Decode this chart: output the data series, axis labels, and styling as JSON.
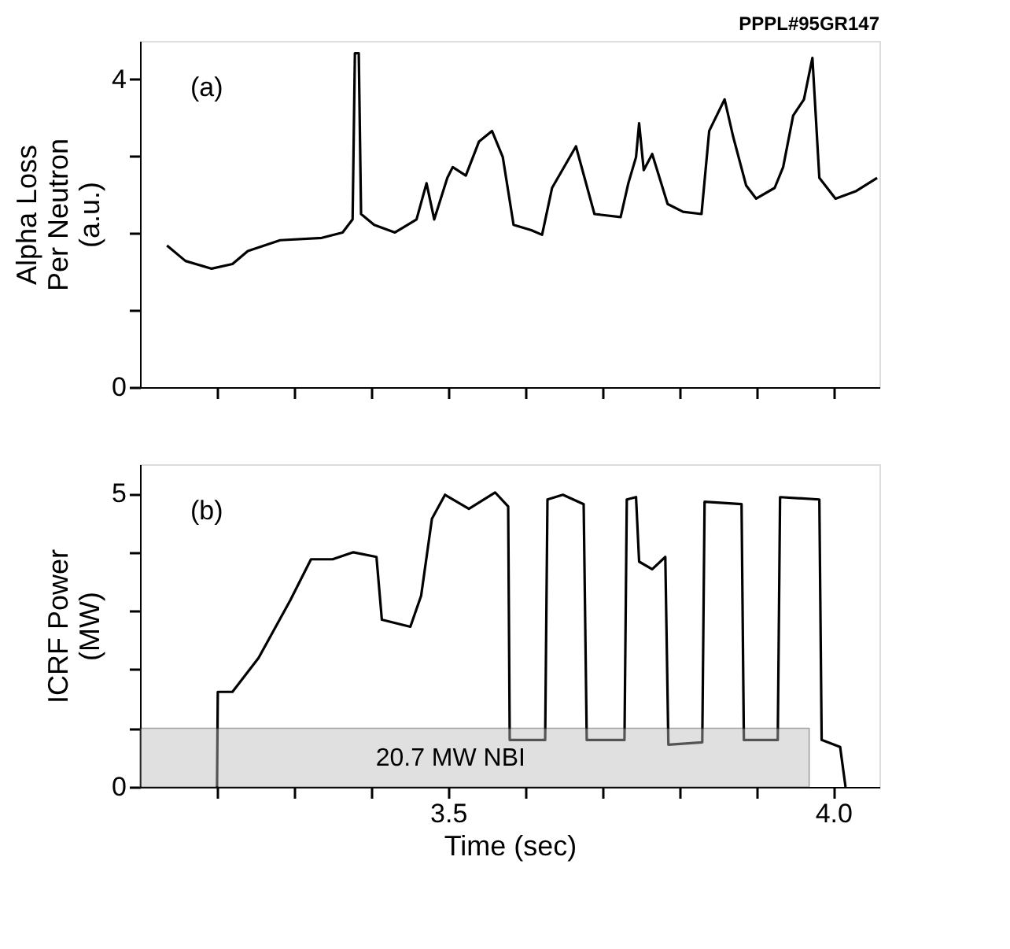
{
  "chart_data": [
    {
      "type": "line",
      "title": "PPPL#95GR147",
      "ylabel": "Alpha Loss Per Neutron (a.u.)",
      "annotations": [
        "(a)"
      ],
      "xlim": [
        3.1,
        4.06
      ],
      "xticks": [
        {
          "value": 3.2,
          "label": null
        },
        {
          "value": 3.3,
          "label": null
        },
        {
          "value": 3.4,
          "label": null
        },
        {
          "value": 3.5,
          "label": null
        },
        {
          "value": 3.6,
          "label": null
        },
        {
          "value": 3.7,
          "label": null
        },
        {
          "value": 3.8,
          "label": null
        },
        {
          "value": 3.9,
          "label": null
        },
        {
          "value": 4.0,
          "label": null
        }
      ],
      "ylim": [
        0,
        4.5
      ],
      "yticks": [
        0,
        {
          "value": 1,
          "label": null
        },
        {
          "value": 2,
          "label": null
        },
        {
          "value": 3,
          "label": null
        },
        4
      ],
      "tick_labels": "y",
      "grid": false,
      "series": [
        {
          "color": "#000000",
          "x": [
            3.135,
            3.159,
            3.193,
            3.22,
            3.24,
            3.282,
            3.336,
            3.363,
            3.376,
            3.379,
            3.384,
            3.387,
            3.404,
            3.431,
            3.459,
            3.472,
            3.482,
            3.499,
            3.506,
            3.523,
            3.54,
            3.557,
            3.571,
            3.585,
            3.608,
            3.622,
            3.635,
            3.666,
            3.69,
            3.724,
            3.734,
            3.744,
            3.748,
            3.754,
            3.765,
            3.785,
            3.805,
            3.829,
            3.839,
            3.859,
            3.87,
            3.887,
            3.9,
            3.924,
            3.935,
            3.948,
            3.962,
            3.973,
            3.982,
            4.003,
            4.03,
            4.057
          ],
          "values": [
            1.84,
            1.64,
            1.54,
            1.6,
            1.77,
            1.91,
            1.94,
            2.01,
            2.18,
            4.34,
            4.34,
            2.25,
            2.11,
            2.01,
            2.18,
            2.65,
            2.18,
            2.72,
            2.86,
            2.75,
            3.19,
            3.33,
            2.99,
            2.11,
            2.04,
            1.98,
            2.59,
            3.13,
            2.25,
            2.21,
            2.65,
            2.99,
            3.43,
            2.82,
            3.03,
            2.38,
            2.28,
            2.25,
            3.33,
            3.74,
            3.26,
            2.62,
            2.45,
            2.59,
            2.86,
            3.53,
            3.74,
            4.28,
            2.72,
            2.45,
            2.55,
            2.72
          ]
        }
      ]
    },
    {
      "type": "line",
      "xlabel": "Time (sec)",
      "ylabel": "ICRF Power (MW)",
      "annotations": [
        "(b)"
      ],
      "xlim": [
        3.1,
        4.06
      ],
      "xticks": [
        {
          "value": 3.2,
          "label": null
        },
        {
          "value": 3.3,
          "label": null
        },
        {
          "value": 3.4,
          "label": null
        },
        3.5,
        {
          "value": 3.6,
          "label": null
        },
        {
          "value": 3.7,
          "label": null
        },
        {
          "value": 3.8,
          "label": null
        },
        {
          "value": 3.9,
          "label": null
        },
        {
          "value": 4.0,
          "label": "4.0"
        }
      ],
      "ylim": [
        0,
        5.5
      ],
      "yticks": [
        0,
        {
          "value": 1,
          "label": null
        },
        {
          "value": 2,
          "label": null
        },
        {
          "value": 3,
          "label": null
        },
        {
          "value": 4,
          "label": null
        },
        5
      ],
      "grid": false,
      "bands": [
        {
          "axis": "y",
          "from": 0,
          "to": 1,
          "label": "20.7 MW NBI",
          "color": "#bbbbbb"
        }
      ],
      "series": [
        {
          "color": "#000000",
          "x": [
            3.2,
            3.201,
            3.22,
            3.254,
            3.295,
            3.322,
            3.35,
            3.377,
            3.407,
            3.414,
            3.451,
            3.465,
            3.479,
            3.496,
            3.527,
            3.561,
            3.578,
            3.58,
            3.626,
            3.629,
            3.649,
            3.676,
            3.68,
            3.729,
            3.732,
            3.744,
            3.748,
            3.765,
            3.782,
            3.786,
            3.83,
            3.833,
            3.881,
            3.884,
            3.928,
            3.931,
            3.982,
            3.985,
            4.009,
            4.016
          ],
          "values": [
            0,
            1.62,
            1.62,
            2.2,
            3.18,
            3.88,
            3.88,
            4.0,
            3.92,
            2.85,
            2.73,
            3.26,
            4.57,
            4.98,
            4.74,
            5.02,
            4.78,
            0.8,
            0.8,
            4.9,
            4.98,
            4.82,
            0.8,
            0.8,
            4.9,
            4.94,
            3.84,
            3.71,
            3.92,
            0.72,
            0.76,
            4.86,
            4.82,
            0.8,
            0.8,
            4.94,
            4.9,
            0.8,
            0.68,
            0
          ]
        }
      ]
    }
  ]
}
